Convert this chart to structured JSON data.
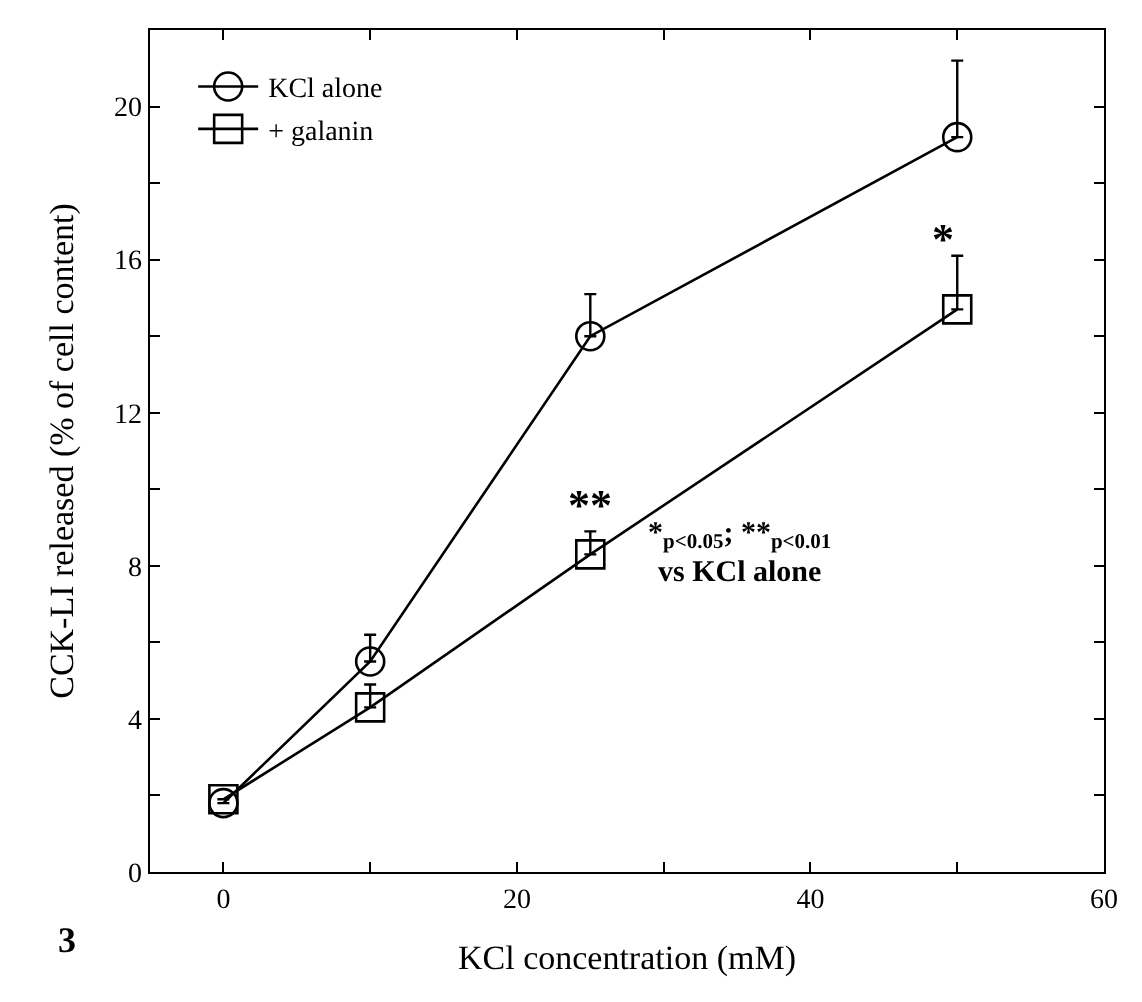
{
  "chart_data": {
    "type": "line",
    "xlabel": "KCl concentration (mM)",
    "ylabel": "CCK-LI released (% of cell content)",
    "x": [
      0,
      10,
      25,
      50
    ],
    "series": [
      {
        "name": "KCl alone",
        "color": "#000000",
        "marker": "circle",
        "values": [
          1.8,
          5.5,
          14.0,
          19.2
        ],
        "errors": [
          null,
          [
            5.5,
            6.2
          ],
          [
            14.0,
            15.1
          ],
          [
            19.2,
            21.2
          ]
        ]
      },
      {
        "name": "+ galanin",
        "color": "#000000",
        "marker": "square",
        "values": [
          1.9,
          4.3,
          8.3,
          14.7
        ],
        "errors": [
          null,
          [
            4.3,
            4.9
          ],
          [
            8.3,
            8.9
          ],
          [
            14.7,
            16.1
          ]
        ]
      }
    ],
    "xlim": [
      -5,
      60
    ],
    "xticks": [
      0,
      {
        "value": 10,
        "label": null
      },
      20,
      {
        "value": 30,
        "label": null
      },
      40,
      {
        "value": 50,
        "label": null
      },
      60
    ],
    "ylim": [
      0,
      22
    ],
    "yticks": [
      0,
      {
        "value": 2,
        "label": null
      },
      4,
      {
        "value": 6,
        "label": null
      },
      8,
      {
        "value": 10,
        "label": null
      },
      12,
      {
        "value": 14,
        "label": null
      },
      16,
      {
        "value": 18,
        "label": null
      },
      20
    ],
    "annotations": [
      "*",
      "**",
      "*$_{p<0.05}$; **$_{p<0.01}$\nvs KCl alone",
      "3"
    ],
    "legend": "top left",
    "line_style": "solid"
  }
}
